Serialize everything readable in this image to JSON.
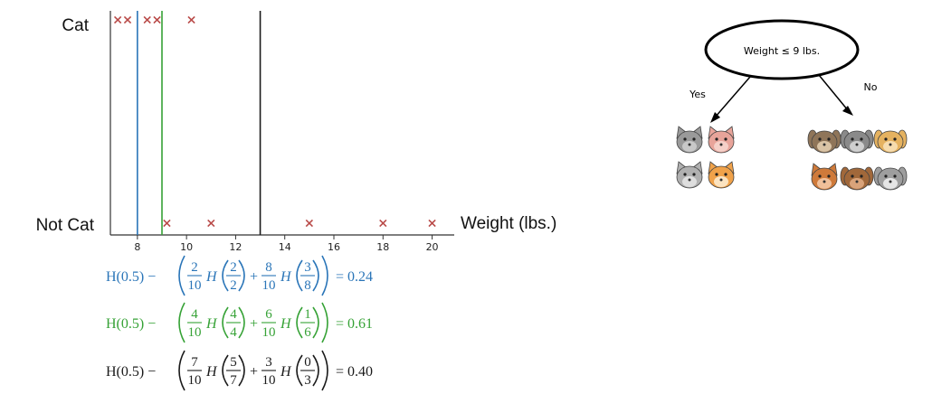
{
  "plot": {
    "y_categories": [
      "Cat",
      "Not Cat"
    ],
    "x_axis_title": "Weight (lbs.)",
    "x_ticks": [
      8,
      10,
      12,
      14,
      16,
      18,
      20
    ],
    "x_range": [
      6.9,
      20.9
    ],
    "cat_points": [
      7.2,
      7.6,
      8.4,
      8.8,
      10.2
    ],
    "not_cat_points": [
      9.2,
      11,
      15,
      18,
      20
    ],
    "splits": [
      {
        "value": 8,
        "color": "#2a75b8"
      },
      {
        "value": 9,
        "color": "#36a236"
      },
      {
        "value": 13,
        "color": "#1a1a1a"
      }
    ],
    "marker_color": "#b94a48"
  },
  "equations": [
    {
      "color": "#2a75b8",
      "prefix": "H(0.5) −",
      "t1": {
        "n": "2",
        "d": "10"
      },
      "h1": {
        "n": "2",
        "d": "2"
      },
      "t2": {
        "n": "8",
        "d": "10"
      },
      "h2": {
        "n": "3",
        "d": "8"
      },
      "result": "= 0.24"
    },
    {
      "color": "#36a236",
      "prefix": "H(0.5) −",
      "t1": {
        "n": "4",
        "d": "10"
      },
      "h1": {
        "n": "4",
        "d": "4"
      },
      "t2": {
        "n": "6",
        "d": "10"
      },
      "h2": {
        "n": "1",
        "d": "6"
      },
      "result": "= 0.61"
    },
    {
      "color": "#1a1a1a",
      "prefix": "H(0.5) −",
      "t1": {
        "n": "7",
        "d": "10"
      },
      "h1": {
        "n": "5",
        "d": "7"
      },
      "t2": {
        "n": "3",
        "d": "10"
      },
      "h2": {
        "n": "0",
        "d": "3"
      },
      "result": "= 0.40"
    }
  ],
  "tree": {
    "root_label": "Weight ≤ 9 lbs.",
    "left_label": "Yes",
    "right_label": "No",
    "left_animals": [
      "cat",
      "cat",
      "cat",
      "cat"
    ],
    "right_animals": [
      "dog",
      "dog",
      "dog",
      "cat",
      "dog",
      "dog"
    ]
  },
  "colors": {
    "axis": "#333333",
    "text": "#111111"
  }
}
